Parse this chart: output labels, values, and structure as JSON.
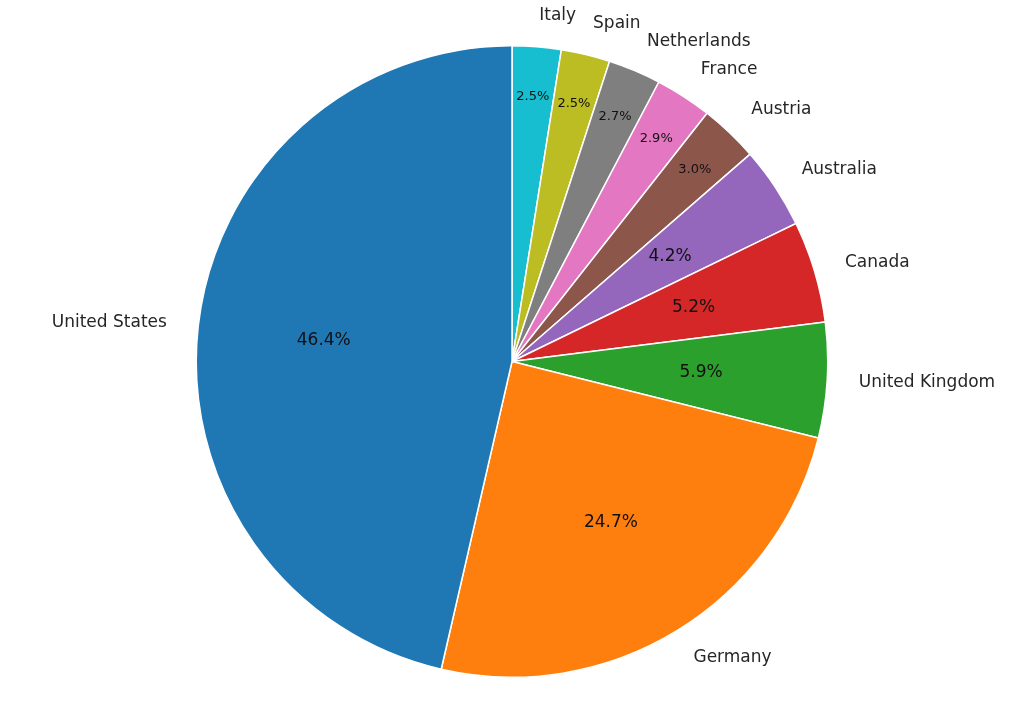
{
  "chart_data": {
    "type": "pie",
    "categories": [
      "Italy",
      "Spain",
      "Netherlands",
      "France",
      "Austria",
      "Australia",
      "Canada",
      "United Kingdom",
      "Germany",
      "United States"
    ],
    "values": [
      2.5,
      2.5,
      2.7,
      2.9,
      3.0,
      4.2,
      5.2,
      5.9,
      24.7,
      46.4
    ],
    "colors": [
      "#17becf",
      "#bcbd22",
      "#7f7f7f",
      "#e377c2",
      "#8c564b",
      "#9467bd",
      "#d62728",
      "#2ca02c",
      "#ff7f0e",
      "#1f77b4"
    ],
    "value_labels": [
      "2.5%",
      "2.5%",
      "2.7%",
      "2.9%",
      "3.0%",
      "4.2%",
      "5.2%",
      "5.9%",
      "24.7%",
      "46.4%"
    ],
    "legend": false
  }
}
